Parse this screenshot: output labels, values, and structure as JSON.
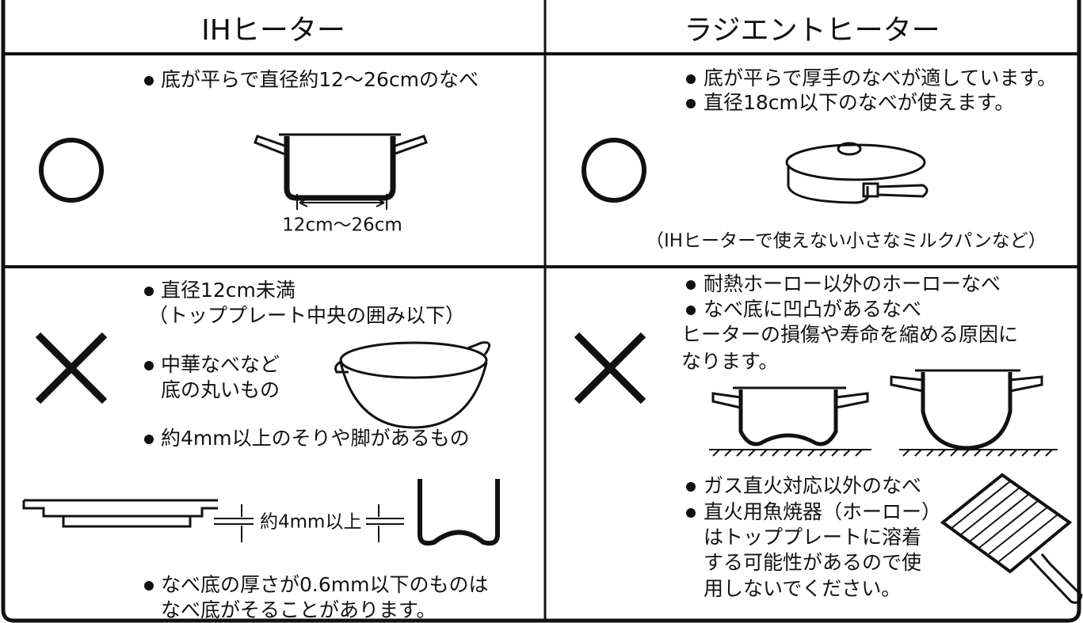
{
  "header": {
    "left": "IHヒーター",
    "right": "ラジエントヒーター"
  },
  "rows": [
    {
      "left": {
        "bullets": [
          "底が平らで直径約12～26cmのなべ"
        ],
        "dimension_label": "12cm～26cm"
      },
      "right": {
        "bullets": [
          "底が平らで厚手のなべが適しています。",
          "直径18cm以下のなべが使えます。"
        ],
        "note": "（IHヒーターで使えない小さなミルクパンなど）"
      }
    },
    {
      "left": {
        "bullets": [
          "直径12cm未満",
          "中華なべなど",
          "約4mm以上のそりや脚があるもの",
          "なべ底の厚さが0.6mm以下のものは"
        ],
        "continuations": [
          "（トッププレート中央の囲み以下）",
          "底の丸いもの",
          "なべ底がそることがあります。"
        ],
        "dimension_label": "約4mm以上"
      },
      "right": {
        "bullets": [
          "耐熱ホーロー以外のホーローなべ",
          "なべ底に凹凸があるなべ",
          "ガス直火対応以外のなべ",
          "直火用魚焼器（ホーロー）"
        ],
        "continuations": [
          "ヒーターの損傷や寿命を縮める原因に",
          "なります。",
          "はトッププレートに溶着",
          "する可能性があるので使",
          "用しないでください。"
        ]
      }
    }
  ]
}
